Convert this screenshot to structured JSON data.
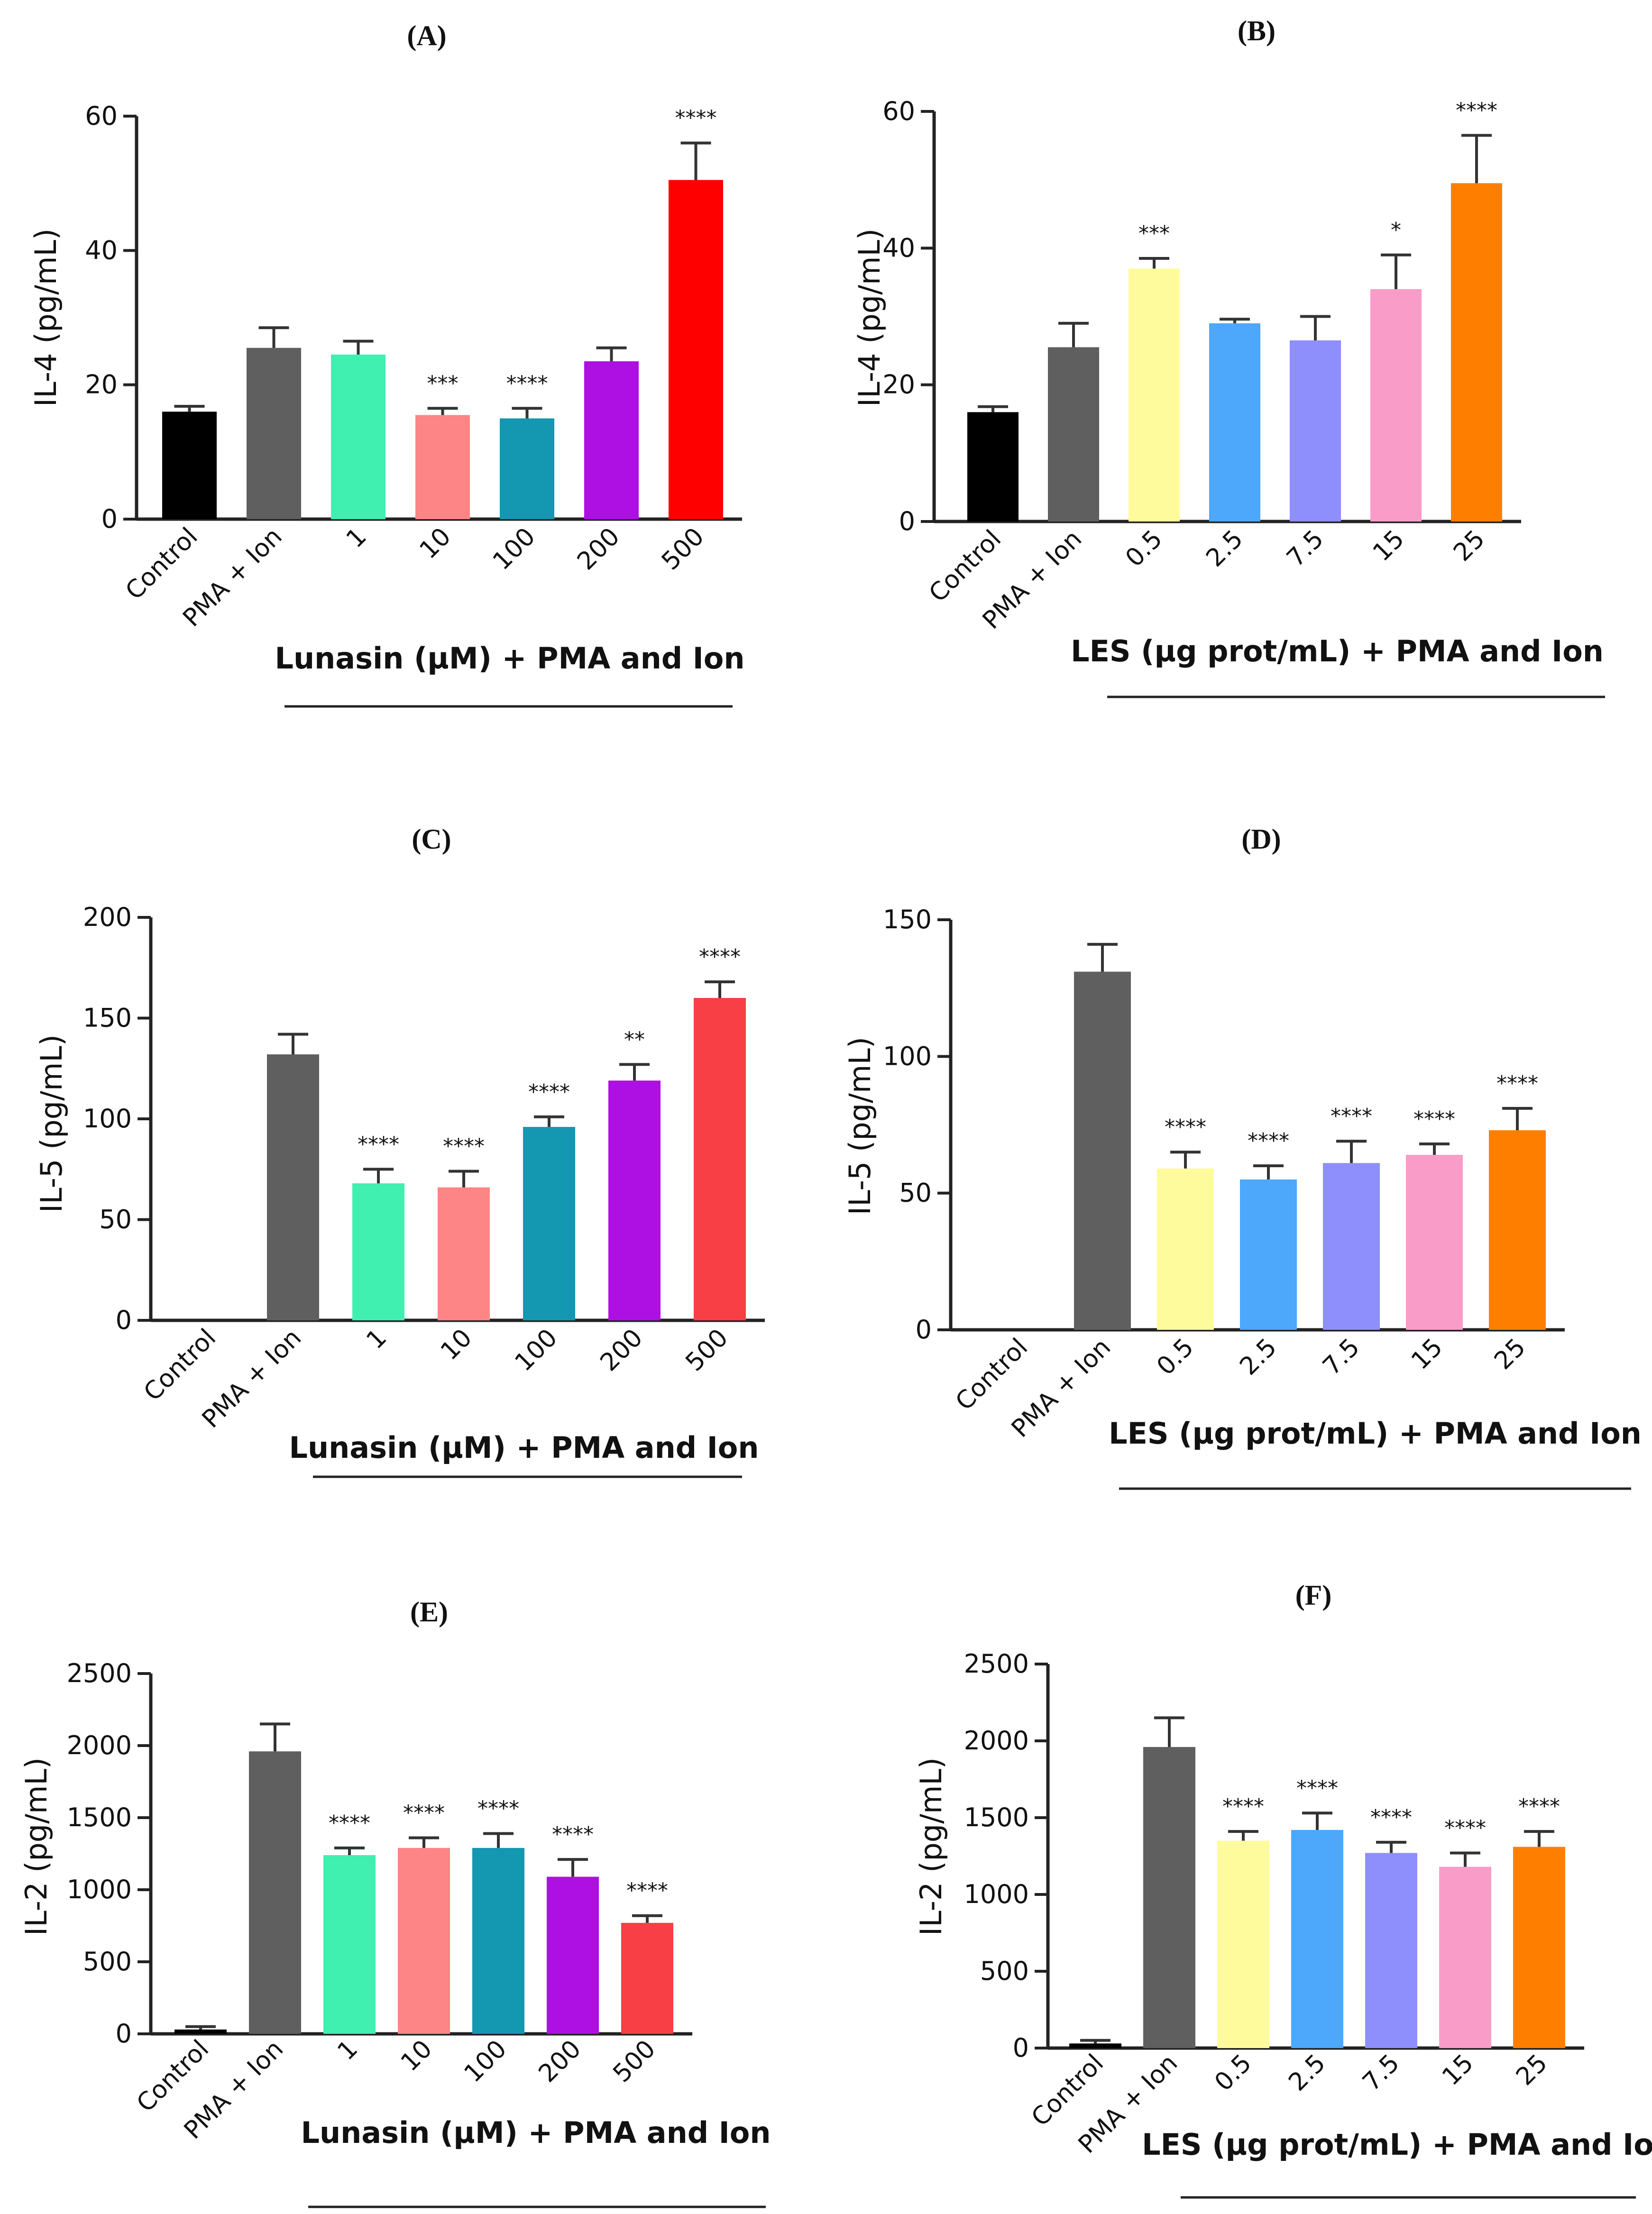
{
  "chart_data": [
    {
      "panel": "(A)",
      "title": "(A)",
      "type": "bar",
      "ylabel": "IL-4 (pg/mL)",
      "xlabel": "Lunasin (µM) + PMA and Ion",
      "ylim": [
        0,
        60
      ],
      "yticks": [
        "0",
        "20",
        "40",
        "60"
      ],
      "categories": [
        "Control",
        "PMA + Ion",
        "1",
        "10",
        "100",
        "200",
        "500"
      ],
      "values": [
        16,
        25.5,
        24.5,
        15.5,
        15,
        23.5,
        50.5
      ],
      "errors": [
        0.8,
        3,
        2,
        1,
        1.5,
        2,
        5.5
      ],
      "significance": [
        "",
        "",
        "",
        "***",
        "****",
        "",
        "****"
      ],
      "colors": [
        "#000000",
        "#5f5f5f",
        "#3ff0b0",
        "#fd8585",
        "#1497b0",
        "#ae0fe2",
        "#fe0000"
      ]
    },
    {
      "panel": "(B)",
      "title": "(B)",
      "type": "bar",
      "ylabel": "IL-4 (pg/mL)",
      "xlabel": "LES (µg prot/mL) + PMA and Ion",
      "ylim": [
        0,
        60
      ],
      "yticks": [
        "0",
        "20",
        "40",
        "60"
      ],
      "categories": [
        "Control",
        "PMA + Ion",
        "0.5",
        "2.5",
        "7.5",
        "15",
        "25"
      ],
      "values": [
        16,
        25.5,
        37,
        29,
        26.5,
        34,
        49.5
      ],
      "errors": [
        0.8,
        3.5,
        1.5,
        0.6,
        3.5,
        5,
        7
      ],
      "significance": [
        "",
        "",
        "***",
        "",
        "",
        "*",
        "****"
      ],
      "colors": [
        "#000000",
        "#5f5f5f",
        "#fdfb9c",
        "#4da7fb",
        "#8e8efc",
        "#f99cc8",
        "#fe7f00"
      ]
    },
    {
      "panel": "(C)",
      "title": "(C)",
      "type": "bar",
      "ylabel": "IL-5 (pg/mL)",
      "xlabel": "Lunasin (µM) + PMA and Ion",
      "ylim": [
        0,
        200
      ],
      "yticks": [
        "0",
        "50",
        "100",
        "150",
        "200"
      ],
      "categories": [
        "Control",
        "PMA + Ion",
        "1",
        "10",
        "100",
        "200",
        "500"
      ],
      "values": [
        0,
        132,
        68,
        66,
        96,
        119,
        160
      ],
      "errors": [
        0,
        10,
        7,
        8,
        5,
        8,
        8
      ],
      "significance": [
        "",
        "",
        "****",
        "****",
        "****",
        "**",
        "****"
      ],
      "colors": [
        "#000000",
        "#5f5f5f",
        "#3ff0b0",
        "#fd8585",
        "#1497b0",
        "#ae0fe2",
        "#f73f45"
      ]
    },
    {
      "panel": "(D)",
      "title": "(D)",
      "type": "bar",
      "ylabel": "IL-5 (pg/mL)",
      "xlabel": "LES (µg prot/mL) + PMA and Ion",
      "ylim": [
        0,
        150
      ],
      "yticks": [
        "0",
        "50",
        "100",
        "150"
      ],
      "categories": [
        "Control",
        "PMA + Ion",
        "0.5",
        "2.5",
        "7.5",
        "15",
        "25"
      ],
      "values": [
        0,
        131,
        59,
        55,
        61,
        64,
        73
      ],
      "errors": [
        0,
        10,
        6,
        5,
        8,
        4,
        8
      ],
      "significance": [
        "",
        "",
        "****",
        "****",
        "****",
        "****",
        "****"
      ],
      "colors": [
        "#000000",
        "#5f5f5f",
        "#fdfb9c",
        "#4da7fb",
        "#8e8efc",
        "#f99cc8",
        "#fe7f00"
      ]
    },
    {
      "panel": "(E)",
      "title": "(E)",
      "type": "bar",
      "ylabel": "IL-2 (pg/mL)",
      "xlabel": "Lunasin (µM) + PMA and Ion",
      "ylim": [
        0,
        2500
      ],
      "yticks": [
        "0",
        "500",
        "1000",
        "1500",
        "2000",
        "2500"
      ],
      "categories": [
        "Control",
        "PMA + Ion",
        "1",
        "10",
        "100",
        "200",
        "500"
      ],
      "values": [
        30,
        1960,
        1240,
        1290,
        1290,
        1090,
        770
      ],
      "errors": [
        20,
        190,
        50,
        70,
        100,
        120,
        50
      ],
      "significance": [
        "",
        "",
        "****",
        "****",
        "****",
        "****",
        "****"
      ],
      "colors": [
        "#000000",
        "#5f5f5f",
        "#3ff0b0",
        "#fd8585",
        "#1497b0",
        "#ae0fe2",
        "#f73f45"
      ]
    },
    {
      "panel": "(F)",
      "title": "(F)",
      "type": "bar",
      "ylabel": "IL-2 (pg/mL)",
      "xlabel": "LES (µg prot/mL) + PMA and Ion",
      "ylim": [
        0,
        2500
      ],
      "yticks": [
        "0",
        "500",
        "1000",
        "1500",
        "2000",
        "2500"
      ],
      "categories": [
        "Control",
        "PMA + Ion",
        "0.5",
        "2.5",
        "7.5",
        "15",
        "25"
      ],
      "values": [
        30,
        1960,
        1350,
        1420,
        1270,
        1180,
        1310
      ],
      "errors": [
        20,
        190,
        60,
        110,
        70,
        90,
        100
      ],
      "significance": [
        "",
        "",
        "****",
        "****",
        "****",
        "****",
        "****"
      ],
      "colors": [
        "#000000",
        "#5f5f5f",
        "#fdfb9c",
        "#4da7fb",
        "#8e8efc",
        "#f99cc8",
        "#fe7f00"
      ]
    }
  ]
}
